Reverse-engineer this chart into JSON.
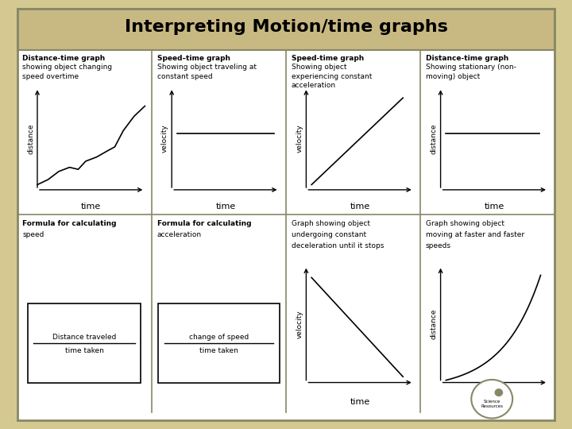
{
  "title": "Interpreting Motion/time graphs",
  "title_fontsize": 16,
  "title_bg": "#c8b882",
  "outer_bg": "#d4c990",
  "inner_bg": "#ffffff",
  "border_color": "#888866",
  "cell_labels": [
    [
      "Distance-time graph\nshowing object changing\nspeed overtime",
      "Speed–time graph\nShowing object traveling at\nconstant speed",
      "Speed-time graph\nShowing object\nexperiencing constant\nacceleration",
      "Distance-time graph\nShowing stationary (non-\nmoving) object"
    ],
    [
      "Formula for calculating\nspeed",
      "Formula for calculating\nacceleration",
      "Graph showing object\nundergoing constant\ndeceleration until it stops",
      "Graph showing object\nmoving at faster and faster\nspeeds"
    ]
  ],
  "graph_types": [
    [
      "jagged_increase",
      "flat_line",
      "straight_increase",
      "flat_line_dist"
    ],
    [
      "formula_speed",
      "formula_accel",
      "straight_decrease",
      "exponential_increase"
    ]
  ],
  "formula_speed_lines": [
    "Distance traveled",
    "time taken"
  ],
  "formula_accel_lines": [
    "change of speed",
    "time taken"
  ]
}
